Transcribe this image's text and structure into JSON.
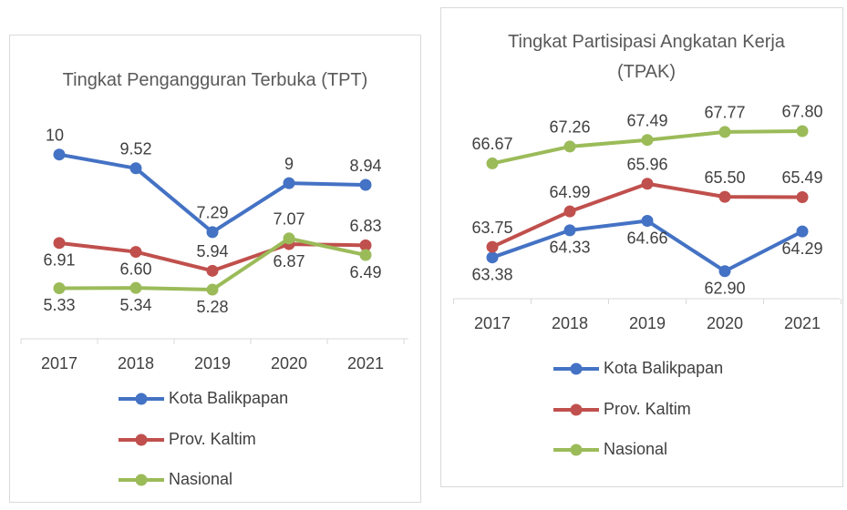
{
  "chart_data": [
    {
      "type": "line",
      "title": "Tingkat Pengangguran Terbuka (TPT)",
      "categories": [
        "2017",
        "2018",
        "2019",
        "2020",
        "2021"
      ],
      "ylim": [
        3.5,
        10.5
      ],
      "legend": "bottom",
      "series": [
        {
          "name": "Kota Balikpapan",
          "color": "#4472c4",
          "values": [
            10,
            9.52,
            7.29,
            9,
            8.94
          ]
        },
        {
          "name": "Prov. Kaltim",
          "color": "#c0504d",
          "values": [
            6.91,
            6.6,
            5.94,
            6.87,
            6.83
          ],
          "value_labels": [
            "6.91",
            "6.60",
            "5.94",
            "6.87",
            "6.83"
          ]
        },
        {
          "name": "Nasional",
          "color": "#9bbb59",
          "values": [
            5.33,
            5.34,
            5.28,
            7.07,
            6.49
          ]
        }
      ]
    },
    {
      "type": "line",
      "title": "Tingkat Partisipasi Angkatan Kerja (TPAK)",
      "categories": [
        "2017",
        "2018",
        "2019",
        "2020",
        "2021"
      ],
      "ylim": [
        62,
        68.5
      ],
      "legend": "bottom",
      "series": [
        {
          "name": "Kota Balikpapan",
          "color": "#4472c4",
          "values": [
            63.38,
            64.33,
            64.66,
            62.9,
            64.29
          ],
          "value_labels": [
            "63.38",
            "64.33",
            "64.66",
            "62.90",
            "64.29"
          ]
        },
        {
          "name": "Prov. Kaltim",
          "color": "#c0504d",
          "values": [
            63.75,
            64.99,
            65.96,
            65.5,
            65.49
          ],
          "value_labels": [
            "63.75",
            "64.99",
            "65.96",
            "65.50",
            "65.49"
          ]
        },
        {
          "name": "Nasional",
          "color": "#9bbb59",
          "values": [
            66.67,
            67.26,
            67.49,
            67.77,
            67.8
          ],
          "value_labels": [
            "66.67",
            "67.26",
            "67.49",
            "67.77",
            "67.80"
          ]
        }
      ]
    }
  ]
}
